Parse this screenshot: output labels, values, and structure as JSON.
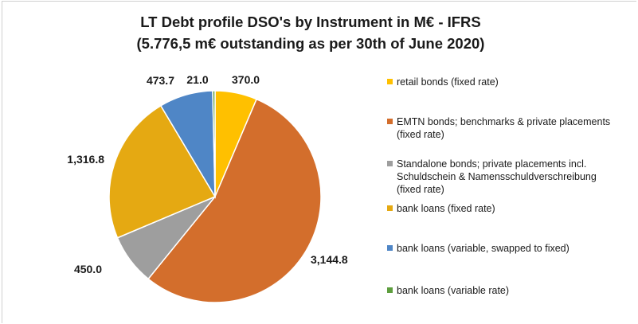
{
  "chart_data": {
    "type": "pie",
    "title": "LT Debt profile DSO's by Instrument in M€ - IFRS",
    "subtitle": "(5.776,5 m€ outstanding as per 30th of June 2020)",
    "categories": [
      "retail bonds (fixed rate)",
      "EMTN bonds; benchmarks & private placements (fixed rate)",
      "Standalone bonds; private placements incl. Schuldschein & Namensschuldverschreibung (fixed rate)",
      "bank loans (fixed rate)",
      "bank loans (variable, swapped to fixed)",
      "bank loans (variable rate)"
    ],
    "values": [
      370.0,
      3144.8,
      450.0,
      1316.8,
      473.7,
      21.0
    ],
    "value_labels": [
      "370.0",
      "3,144.8",
      "450.0",
      "1,316.8",
      "473.7",
      "21.0"
    ],
    "colors": [
      "#FFC000",
      "#D36E2C",
      "#9E9E9E",
      "#E5A912",
      "#4F86C6",
      "#5E9E3E"
    ],
    "legend_position": "right",
    "start_angle": "12 o'clock, clockwise"
  },
  "legend_lines": [
    [
      "retail bonds (fixed rate)"
    ],
    [
      "EMTN bonds; benchmarks & private placements",
      "(fixed rate)"
    ],
    [
      "Standalone bonds; private placements incl.",
      "Schuldschein & Namensschuldverschreibung",
      "(fixed rate)"
    ],
    [
      "bank loans (fixed rate)"
    ],
    [
      "bank loans (variable, swapped to fixed)"
    ],
    [
      "bank loans (variable rate)"
    ]
  ]
}
